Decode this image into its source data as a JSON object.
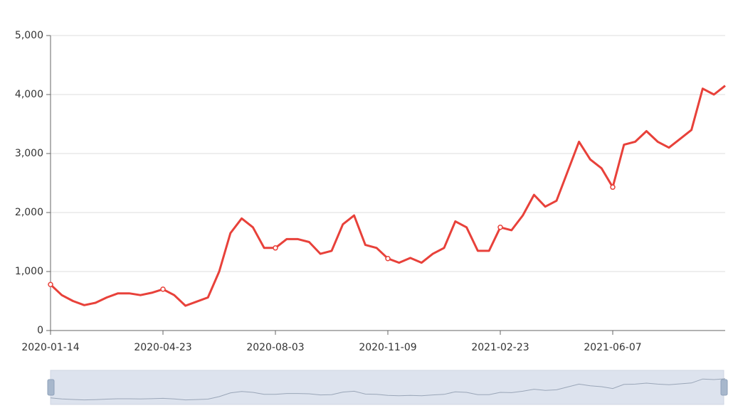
{
  "chart_data": {
    "type": "line",
    "categories": [
      "2020-01-14",
      null,
      null,
      null,
      null,
      null,
      null,
      null,
      null,
      null,
      "2020-04-23",
      null,
      null,
      null,
      null,
      null,
      null,
      null,
      null,
      null,
      "2020-08-03",
      null,
      null,
      null,
      null,
      null,
      null,
      null,
      null,
      null,
      "2020-11-09",
      null,
      null,
      null,
      null,
      null,
      null,
      null,
      null,
      null,
      "2021-02-23",
      null,
      null,
      null,
      null,
      null,
      null,
      null,
      null,
      null,
      "2021-06-07",
      null,
      null,
      null,
      null,
      null,
      null,
      null,
      null,
      null,
      null
    ],
    "values": [
      780,
      600,
      500,
      430,
      470,
      560,
      630,
      630,
      600,
      640,
      700,
      600,
      420,
      490,
      560,
      1000,
      1650,
      1900,
      1750,
      1400,
      1400,
      1550,
      1550,
      1500,
      1300,
      1350,
      1800,
      1950,
      1450,
      1400,
      1220,
      1150,
      1230,
      1150,
      1300,
      1400,
      1850,
      1750,
      1350,
      1350,
      1750,
      1700,
      1950,
      2300,
      2100,
      2200,
      2700,
      3200,
      2900,
      2750,
      2430,
      3150,
      3200,
      3380,
      3200,
      3100,
      3250,
      3400,
      4100,
      4000,
      4150
    ],
    "color": "#e8413a",
    "ylim": [
      0,
      5000
    ],
    "yticks": [
      0,
      {
        "value": 1000,
        "label": "1,000"
      },
      {
        "value": 2000,
        "label": "2,000"
      },
      {
        "value": 3000,
        "label": "3,000"
      },
      {
        "value": 4000,
        "label": "4,000"
      },
      {
        "value": 5000,
        "label": "5,000"
      }
    ],
    "grid": true
  }
}
